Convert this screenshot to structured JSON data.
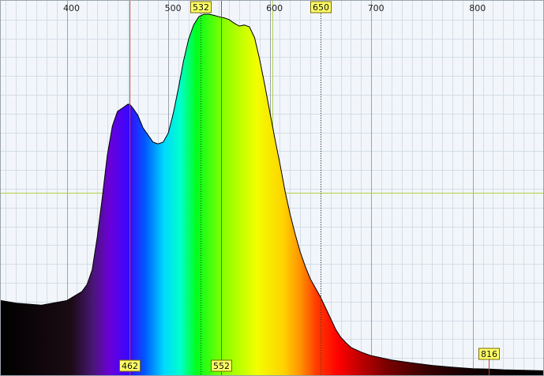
{
  "chart_data": {
    "type": "area",
    "title": "",
    "xlabel": "",
    "ylabel": "",
    "xlim": [
      335,
      871
    ],
    "ylim": [
      0,
      1
    ],
    "x_ticks": [
      400,
      500,
      600,
      700,
      800
    ],
    "grid": true,
    "fill": "visible-spectrum-gradient",
    "series": [
      {
        "values_x": [
          335,
          350,
          375,
          400,
          415,
          420,
          425,
          430,
          435,
          440,
          445,
          450,
          455,
          460,
          462,
          465,
          470,
          475,
          480,
          485,
          490,
          495,
          500,
          505,
          510,
          515,
          520,
          525,
          530,
          535,
          540,
          545,
          550,
          555,
          560,
          565,
          570,
          575,
          580,
          585,
          590,
          595,
          600,
          605,
          610,
          615,
          620,
          625,
          630,
          635,
          640,
          645,
          650,
          655,
          660,
          665,
          670,
          675,
          680,
          690,
          700,
          720,
          740,
          760,
          780,
          800,
          816,
          830,
          871
        ],
        "values_y": [
          0.205,
          0.198,
          0.192,
          0.205,
          0.23,
          0.25,
          0.29,
          0.38,
          0.49,
          0.61,
          0.69,
          0.73,
          0.74,
          0.75,
          0.75,
          0.74,
          0.72,
          0.685,
          0.665,
          0.645,
          0.64,
          0.645,
          0.67,
          0.725,
          0.795,
          0.87,
          0.93,
          0.97,
          0.993,
          1.0,
          1.0,
          0.997,
          0.993,
          0.99,
          0.985,
          0.975,
          0.967,
          0.97,
          0.965,
          0.935,
          0.875,
          0.805,
          0.73,
          0.655,
          0.585,
          0.51,
          0.445,
          0.39,
          0.34,
          0.3,
          0.265,
          0.24,
          0.215,
          0.185,
          0.155,
          0.125,
          0.103,
          0.088,
          0.075,
          0.062,
          0.052,
          0.04,
          0.032,
          0.025,
          0.02,
          0.016,
          0.015,
          0.013,
          0.01
        ]
      }
    ],
    "markers": [
      {
        "label": "462",
        "x": 462,
        "style": "solid",
        "position": "bottom"
      },
      {
        "label": "552",
        "x": 552,
        "style": "solid",
        "position": "bottom"
      },
      {
        "label": "816",
        "x": 816,
        "style": "solid",
        "position": "bottom"
      },
      {
        "label": "532",
        "x": 532,
        "style": "dotted",
        "position": "top"
      },
      {
        "label": "650",
        "x": 650,
        "style": "dotted",
        "position": "top"
      }
    ],
    "colors": {
      "background": "#f2f6fa",
      "grid_minor": "#d4dde7",
      "grid_major": "#9ba4ae",
      "crosshair": "#b0d24a",
      "marker_line": "#c0403a",
      "dotted_line": "#333333",
      "label_fill": "#ffff66",
      "label_stroke": "#7a6a00"
    }
  }
}
